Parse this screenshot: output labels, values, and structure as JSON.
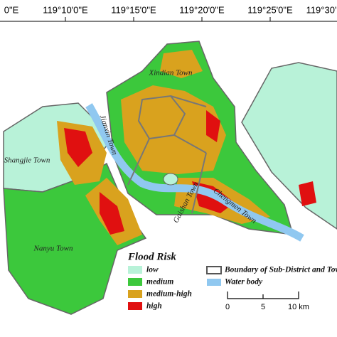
{
  "header": {
    "longitude_labels": [
      "0\"E",
      "119°10'0\"E",
      "119°15'0\"E",
      "119°20'0\"E",
      "119°25'0\"E",
      "119°30'"
    ]
  },
  "towns": [
    "Xindian Town",
    "Shangjie Town",
    "Jianxin Town",
    "Gaishan Town",
    "Chengmen Town",
    "Nanyu Town"
  ],
  "legend": {
    "title": "Flood Risk",
    "items": [
      {
        "label": "low",
        "color": "#b8f2d8"
      },
      {
        "label": "medium",
        "color": "#3cc83c"
      },
      {
        "label": "medium-high",
        "color": "#d9a21e"
      },
      {
        "label": "high",
        "color": "#e01010"
      }
    ],
    "boundary": {
      "label": "Boundary of Sub-District and Town"
    },
    "water": {
      "label": "Water body",
      "color": "#90c8f0"
    }
  },
  "scale_bar": [
    "0",
    "5",
    "10 km"
  ]
}
